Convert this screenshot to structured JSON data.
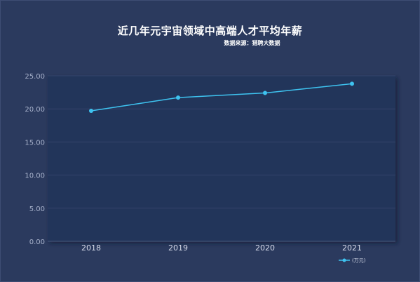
{
  "chart_data": {
    "type": "line",
    "title": "近几年元宇宙领域中高端人才平均年薪",
    "subtitle": "数据来源：猎聘大数据",
    "categories": [
      "2018",
      "2019",
      "2020",
      "2021"
    ],
    "series": [
      {
        "name": "(万元)",
        "values": [
          19.7,
          21.7,
          22.4,
          23.8
        ]
      }
    ],
    "y_ticks": [
      "0.00",
      "5.00",
      "10.00",
      "15.00",
      "20.00",
      "25.00"
    ],
    "ylim": [
      0,
      25
    ],
    "grid": true,
    "legend": "bottom-right",
    "colors": {
      "line": "#3ec3f0",
      "plot_bg": "#24345a",
      "page_bg": "#2b3a5e"
    }
  }
}
